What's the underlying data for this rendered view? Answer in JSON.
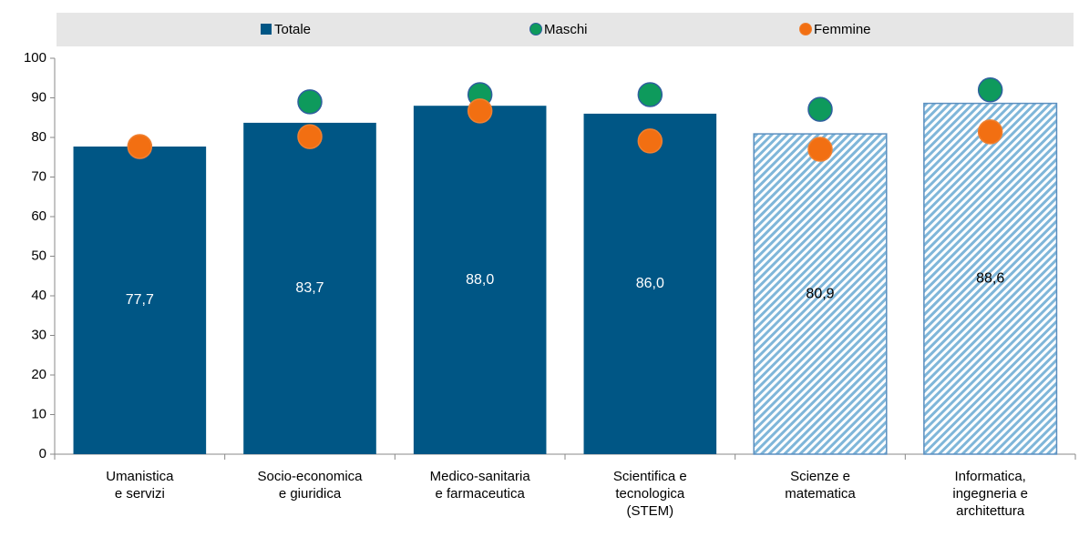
{
  "chart_data": {
    "type": "bar",
    "categories": [
      [
        "Umanistica",
        "e servizi"
      ],
      [
        "Socio-economica",
        "e giuridica"
      ],
      [
        "Medico-sanitaria",
        "e farmaceutica"
      ],
      [
        "Scientifica e",
        "tecnologica",
        "(STEM)"
      ],
      [
        "Scienze e",
        "matematica"
      ],
      [
        "Informatica,",
        "ingegneria e",
        "architettura"
      ]
    ],
    "series": [
      {
        "name": "Totale",
        "type": "bar",
        "color": "#005685",
        "values": [
          77.7,
          83.7,
          88.0,
          86.0,
          80.9,
          88.6
        ],
        "value_labels": [
          "77,7",
          "83,7",
          "88,0",
          "86,0",
          "80,9",
          "88,6"
        ],
        "hatched": [
          false,
          false,
          false,
          false,
          true,
          true
        ]
      },
      {
        "name": "Maschi",
        "type": "marker",
        "color": "#0e9a5c",
        "values": [
          77.6,
          89.0,
          90.8,
          90.8,
          87.1,
          92.0
        ]
      },
      {
        "name": "Femmine",
        "type": "marker",
        "color": "#f26f12",
        "values": [
          77.7,
          80.2,
          86.7,
          79.1,
          77.0,
          81.4
        ]
      }
    ],
    "ylim": [
      0,
      100
    ],
    "yticks": [
      0,
      10,
      20,
      30,
      40,
      50,
      60,
      70,
      80,
      90,
      100
    ]
  }
}
